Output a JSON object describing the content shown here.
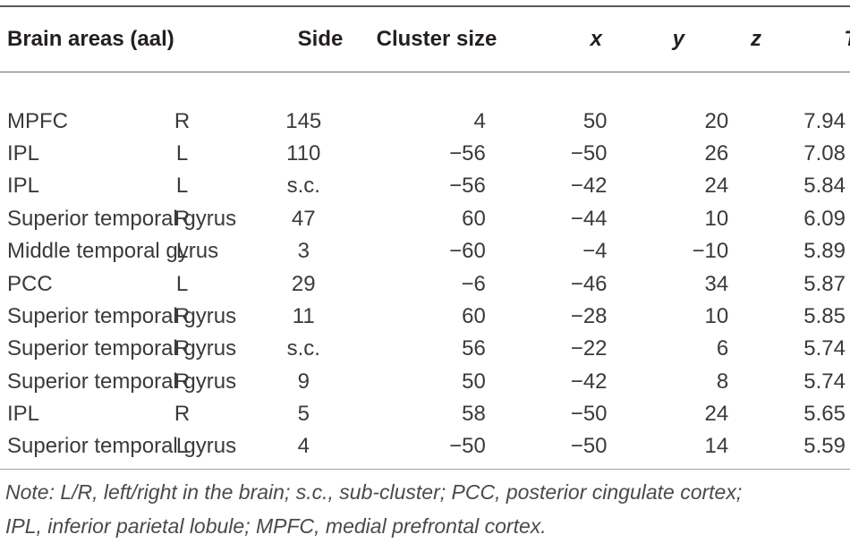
{
  "table": {
    "columns": [
      "Brain areas (aal)",
      "Side",
      "Cluster size",
      "x",
      "y",
      "z",
      "T"
    ],
    "rows": [
      [
        "MPFC",
        "R",
        "145",
        "4",
        "50",
        "20",
        "7.94"
      ],
      [
        "IPL",
        "L",
        "110",
        "−56",
        "−50",
        "26",
        "7.08"
      ],
      [
        "IPL",
        "L",
        "s.c.",
        "−56",
        "−42",
        "24",
        "5.84"
      ],
      [
        "Superior temporal gyrus",
        "R",
        "47",
        "60",
        "−44",
        "10",
        "6.09"
      ],
      [
        "Middle temporal gyrus",
        "L",
        "3",
        "−60",
        "−4",
        "−10",
        "5.89"
      ],
      [
        "PCC",
        "L",
        "29",
        "−6",
        "−46",
        "34",
        "5.87"
      ],
      [
        "Superior temporal gyrus",
        "R",
        "11",
        "60",
        "−28",
        "10",
        "5.85"
      ],
      [
        "Superior temporal gyrus",
        "R",
        "s.c.",
        "56",
        "−22",
        "6",
        "5.74"
      ],
      [
        "Superior temporal gyrus",
        "R",
        "9",
        "50",
        "−42",
        "8",
        "5.74"
      ],
      [
        "IPL",
        "R",
        "5",
        "58",
        "−50",
        "24",
        "5.65"
      ],
      [
        "Superior temporal gyrus",
        "L",
        "4",
        "−50",
        "−50",
        "14",
        "5.59"
      ]
    ]
  },
  "note": {
    "line1": "Note: L/R, left/right in the brain; s.c., sub-cluster; PCC, posterior cingulate cortex;",
    "line2": "IPL, inferior parietal lobule; MPFC, medial prefrontal cortex."
  }
}
